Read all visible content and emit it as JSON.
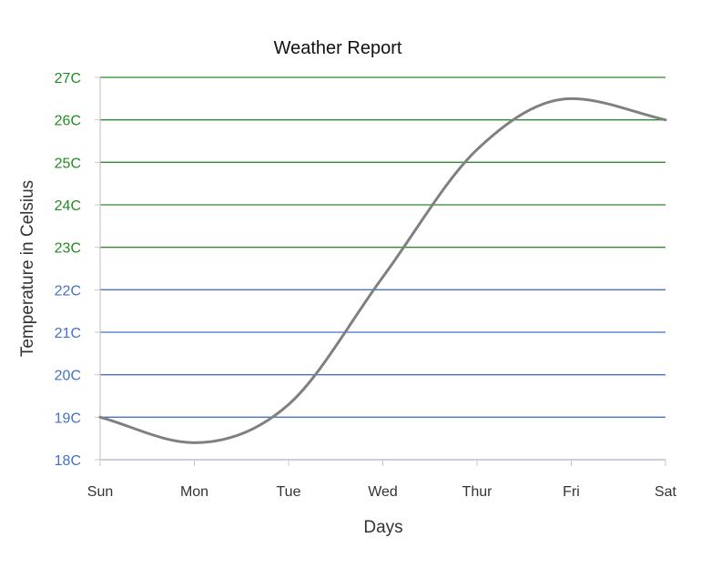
{
  "chart_data": {
    "type": "line",
    "title": "Weather Report",
    "xlabel": "Days",
    "ylabel": "Temperature in Celsius",
    "categories": [
      "Sun",
      "Mon",
      "Tue",
      "Wed",
      "Thur",
      "Fri",
      "Sat"
    ],
    "y_ticks": [
      "18C",
      "19C",
      "20C",
      "21C",
      "22C",
      "23C",
      "24C",
      "25C",
      "26C",
      "27C"
    ],
    "ylim": [
      18,
      27
    ],
    "series": [
      {
        "values": [
          19,
          18.4,
          19.3,
          22.3,
          25.3,
          26.5,
          26
        ]
      }
    ],
    "grid": true,
    "legend": "none",
    "colors": {
      "line": "#808080",
      "grid_low": "#4472C4",
      "grid_high": "#2E8B2E",
      "tick_low": "#4472C4",
      "tick_high": "#228B22",
      "axis": "#c8c8c8",
      "threshold": 23
    }
  }
}
